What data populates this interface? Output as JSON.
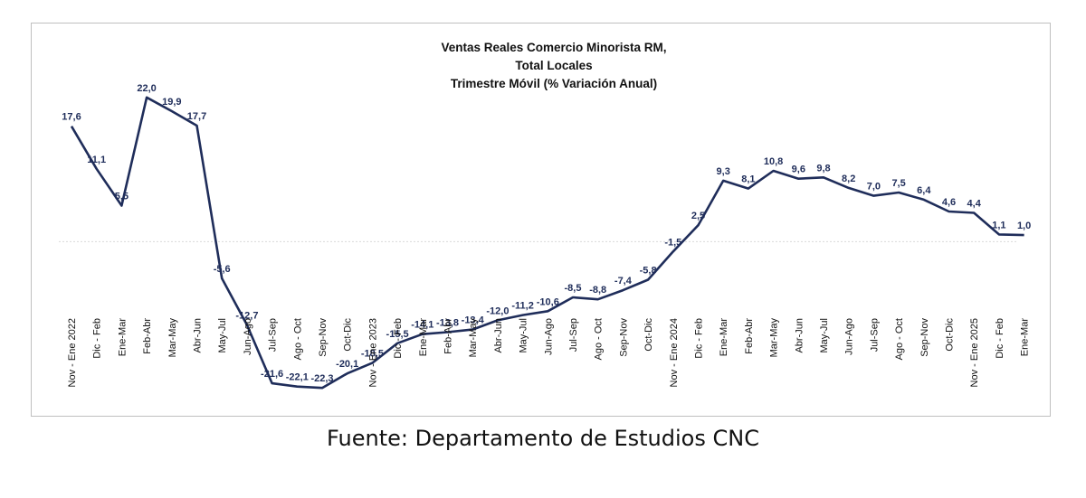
{
  "chart_data": {
    "type": "line",
    "title": "Ventas Reales Comercio Minorista RM,",
    "subtitle_lines": [
      "Total Locales",
      "Trimestre Móvil (% Variación Anual)"
    ],
    "xlabel": "",
    "ylabel": "",
    "ylim": [
      -26,
      25
    ],
    "grid": false,
    "legend": "none",
    "line_color": "#1f2d5a",
    "zero_line_color": "#d9d9d9",
    "categories": [
      "Nov - Ene 2022",
      "Dic - Feb",
      "Ene-Mar",
      "Feb-Abr",
      "Mar-May",
      "Abr-Jun",
      "May-Jul",
      "Jun-Ago",
      "Jul-Sep",
      "Ago - Oct",
      "Sep-Nov",
      "Oct-Dic",
      "Nov - Ene 2023",
      "Dic - Feb",
      "Ene-Mar",
      "Feb-Abr",
      "Mar-May",
      "Abr-Jun",
      "May-Jul",
      "Jun-Ago",
      "Jul-Sep",
      "Ago - Oct",
      "Sep-Nov",
      "Oct-Dic",
      "Nov - Ene 2024",
      "Dic - Feb",
      "Ene-Mar",
      "Feb-Abr",
      "Mar-May",
      "Abr-Jun",
      "May-Jul",
      "Jun-Ago",
      "Jul-Sep",
      "Ago - Oct",
      "Sep-Nov",
      "Oct-Dic",
      "Nov - Ene 2025",
      "Dic - Feb",
      "Ene-Mar"
    ],
    "values": [
      17.6,
      11.1,
      5.5,
      22.0,
      19.9,
      17.7,
      -5.6,
      -12.7,
      -21.6,
      -22.1,
      -22.3,
      -20.1,
      -18.5,
      -15.5,
      -14.1,
      -13.8,
      -13.4,
      -12.0,
      -11.2,
      -10.6,
      -8.5,
      -8.8,
      -7.4,
      -5.8,
      -1.5,
      2.5,
      9.3,
      8.1,
      10.8,
      9.6,
      9.8,
      8.2,
      7.0,
      7.5,
      6.4,
      4.6,
      4.4,
      1.1,
      1.0
    ],
    "data_labels": [
      "17,6",
      "11,1",
      "5,5",
      "22,0",
      "19,9",
      "17,7",
      "-5,6",
      "-12,7",
      "-21,6",
      "-22,1",
      "-22,3",
      "-20,1",
      "-18,5",
      "-15,5",
      "-14,1",
      "-13,8",
      "-13,4",
      "-12,0",
      "-11,2",
      "-10,6",
      "-8,5",
      "-8,8",
      "-7,4",
      "-5,8",
      "-1,5",
      "2,5",
      "9,3",
      "8,1",
      "10,8",
      "9,6",
      "9,8",
      "8,2",
      "7,0",
      "7,5",
      "6,4",
      "4,6",
      "4,4",
      "1,1",
      "1,0"
    ]
  },
  "source_note": "Fuente: Departamento de Estudios CNC"
}
